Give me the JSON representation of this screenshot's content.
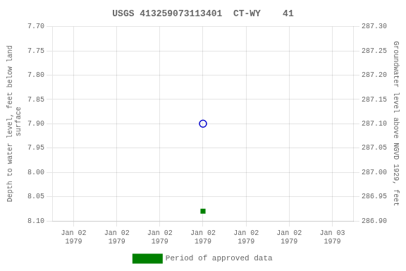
{
  "chart_data": {
    "type": "scatter",
    "title": "USGS 413259073113401  CT-WY    41",
    "y_label": "Depth to water level, feet below land\n surface",
    "y2_label": "Groundwater level above NGVD 1929, feet",
    "categories": [
      "Jan 02\n1979",
      "Jan 02\n1979",
      "Jan 02\n1979",
      "Jan 02\n1979",
      "Jan 02\n1979",
      "Jan 02\n1979",
      "Jan 03\n1979"
    ],
    "series": [
      {
        "color": "#0000cc",
        "marker": "circle",
        "values": [
          null,
          null,
          null,
          7.9,
          null,
          null,
          null
        ]
      },
      {
        "name": "Period of approved data",
        "color": "#008000",
        "marker": "square",
        "values": [
          null,
          null,
          null,
          8.08,
          null,
          null,
          null
        ]
      }
    ],
    "ylim": [
      8.1,
      7.7
    ],
    "yticks": [
      {
        "value": 7.7,
        "label": "7.70"
      },
      7.75,
      {
        "value": 7.8,
        "label": "7.80"
      },
      7.85,
      {
        "value": 7.9,
        "label": "7.90"
      },
      7.95,
      {
        "value": 8.0,
        "label": "8.00"
      },
      8.05,
      {
        "value": 8.1,
        "label": "8.10"
      }
    ],
    "y2lim": [
      286.9,
      287.3
    ],
    "y2ticks": [
      {
        "value": 286.9,
        "label": "286.90"
      },
      286.95,
      {
        "value": 287.0,
        "label": "287.00"
      },
      287.05,
      {
        "value": 287.1,
        "label": "287.10"
      },
      287.15,
      {
        "value": 287.2,
        "label": "287.20"
      },
      287.25,
      {
        "value": 287.3,
        "label": "287.30"
      }
    ],
    "grid": true,
    "legend": "bottom"
  }
}
